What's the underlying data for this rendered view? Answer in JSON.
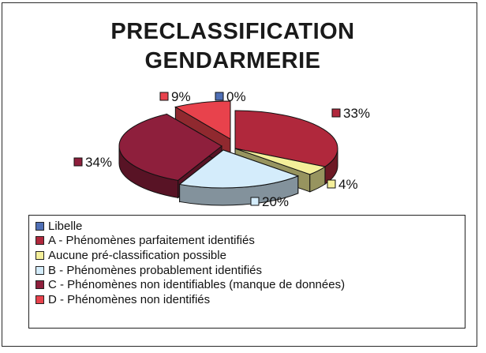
{
  "chart_data": {
    "type": "pie",
    "title_lines": [
      "PRECLASSIFICATION",
      "GENDARMERIE"
    ],
    "slices": [
      {
        "name": "Libelle",
        "value": 0,
        "label": "0%",
        "color": "#4f6fb5"
      },
      {
        "name": "A - Phénomènes parfaitement identifiés",
        "value": 33,
        "label": "33%",
        "color": "#b0283c"
      },
      {
        "name": "Aucune pré-classification possible",
        "value": 4,
        "label": "4%",
        "color": "#f4ef9a"
      },
      {
        "name": "B - Phénomènes probablement identifiés",
        "value": 20,
        "label": "20%",
        "color": "#d4ecfb"
      },
      {
        "name": "C - Phénomènes non identifiables (manque de données)",
        "value": 34,
        "label": "34%",
        "color": "#8e1f3c"
      },
      {
        "name": "D - Phénomènes non identifiés",
        "value": 9,
        "label": "9%",
        "color": "#e8424c"
      }
    ],
    "legend_position": "bottom"
  }
}
